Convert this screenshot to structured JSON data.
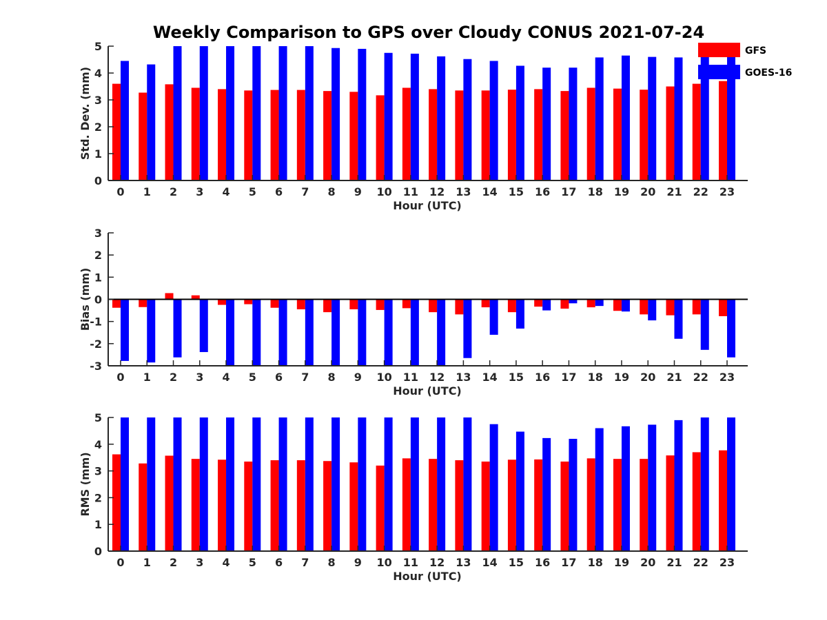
{
  "figure": {
    "title": "Weekly Comparison to GPS over Cloudy CONUS 2021-07-24"
  },
  "legend": {
    "placement": "top-right",
    "entries": [
      {
        "name": "GFS",
        "color": "#ff0000"
      },
      {
        "name": "GOES-16",
        "color": "#0000ff"
      }
    ]
  },
  "chart_data": [
    {
      "type": "bar",
      "xlabel": "Hour (UTC)",
      "ylabel": "Std. Dev. (mm)",
      "ylim": [
        0,
        5
      ],
      "yticks": [
        0,
        1,
        2,
        3,
        4,
        5
      ],
      "grid": false,
      "categories": [
        "0",
        "1",
        "2",
        "3",
        "4",
        "5",
        "6",
        "7",
        "8",
        "9",
        "10",
        "11",
        "12",
        "13",
        "14",
        "15",
        "16",
        "17",
        "18",
        "19",
        "20",
        "21",
        "22",
        "23"
      ],
      "series": [
        {
          "name": "GFS",
          "color": "#ff0000",
          "values": [
            3.6,
            3.27,
            3.58,
            3.45,
            3.4,
            3.35,
            3.37,
            3.37,
            3.33,
            3.3,
            3.17,
            3.45,
            3.4,
            3.35,
            3.35,
            3.38,
            3.4,
            3.33,
            3.45,
            3.42,
            3.38,
            3.5,
            3.6,
            3.7
          ]
        },
        {
          "name": "GOES-16",
          "color": "#0000ff",
          "values": [
            4.45,
            4.32,
            5.0,
            5.0,
            5.0,
            5.0,
            5.0,
            5.0,
            4.93,
            4.9,
            4.75,
            4.72,
            4.62,
            4.52,
            4.45,
            4.27,
            4.2,
            4.2,
            4.58,
            4.65,
            4.6,
            4.58,
            4.78,
            4.75
          ]
        }
      ]
    },
    {
      "type": "bar",
      "xlabel": "Hour (UTC)",
      "ylabel": "Bias (mm)",
      "ylim": [
        -3,
        3
      ],
      "yticks": [
        -3,
        -2,
        -1,
        0,
        1,
        2,
        3
      ],
      "grid": false,
      "zero_line": true,
      "categories": [
        "0",
        "1",
        "2",
        "3",
        "4",
        "5",
        "6",
        "7",
        "8",
        "9",
        "10",
        "11",
        "12",
        "13",
        "14",
        "15",
        "16",
        "17",
        "18",
        "19",
        "20",
        "21",
        "22",
        "23"
      ],
      "series": [
        {
          "name": "GFS",
          "color": "#ff0000",
          "values": [
            -0.38,
            -0.35,
            0.28,
            0.18,
            -0.25,
            -0.22,
            -0.38,
            -0.45,
            -0.58,
            -0.45,
            -0.48,
            -0.4,
            -0.58,
            -0.68,
            -0.36,
            -0.58,
            -0.33,
            -0.42,
            -0.36,
            -0.52,
            -0.68,
            -0.72,
            -0.68,
            -0.76
          ]
        },
        {
          "name": "GOES-16",
          "color": "#0000ff",
          "values": [
            -2.78,
            -2.85,
            -2.62,
            -2.38,
            -3.0,
            -3.0,
            -3.0,
            -3.0,
            -3.0,
            -3.0,
            -3.0,
            -3.0,
            -3.0,
            -2.65,
            -1.6,
            -1.32,
            -0.5,
            -0.18,
            -0.3,
            -0.55,
            -0.95,
            -1.78,
            -2.28,
            -2.62
          ]
        }
      ]
    },
    {
      "type": "bar",
      "xlabel": "Hour (UTC)",
      "ylabel": "RMS (mm)",
      "ylim": [
        0,
        5
      ],
      "yticks": [
        0,
        1,
        2,
        3,
        4,
        5
      ],
      "grid": false,
      "categories": [
        "0",
        "1",
        "2",
        "3",
        "4",
        "5",
        "6",
        "7",
        "8",
        "9",
        "10",
        "11",
        "12",
        "13",
        "14",
        "15",
        "16",
        "17",
        "18",
        "19",
        "20",
        "21",
        "22",
        "23"
      ],
      "series": [
        {
          "name": "GFS",
          "color": "#ff0000",
          "values": [
            3.62,
            3.28,
            3.57,
            3.45,
            3.42,
            3.35,
            3.4,
            3.4,
            3.37,
            3.32,
            3.2,
            3.47,
            3.45,
            3.4,
            3.35,
            3.42,
            3.43,
            3.35,
            3.47,
            3.45,
            3.45,
            3.58,
            3.7,
            3.77
          ]
        },
        {
          "name": "GOES-16",
          "color": "#0000ff",
          "values": [
            5.0,
            5.0,
            5.0,
            5.0,
            5.0,
            5.0,
            5.0,
            5.0,
            5.0,
            5.0,
            5.0,
            5.0,
            5.0,
            5.0,
            4.75,
            4.47,
            4.23,
            4.2,
            4.6,
            4.67,
            4.73,
            4.9,
            5.0,
            5.0
          ]
        }
      ]
    }
  ]
}
